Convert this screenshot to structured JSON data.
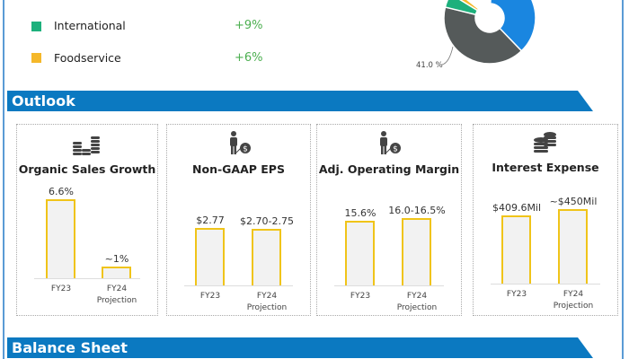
{
  "segments": {
    "items": [
      {
        "label": "International",
        "growth": "+9%",
        "color": "#1db07c"
      },
      {
        "label": "Foodservice",
        "growth": "+6%",
        "color": "#f5b82a"
      }
    ]
  },
  "pie": {
    "label": "41.0 %",
    "slices": [
      {
        "value": 37,
        "color": "#1a86e0"
      },
      {
        "value": 41.0,
        "color": "#555a5a"
      },
      {
        "value": 5,
        "color": "#1db07c"
      },
      {
        "value": 2,
        "color": "#f5b82a"
      }
    ]
  },
  "sections": {
    "outlook": "Outlook",
    "balance_sheet": "Balance Sheet"
  },
  "chart_data": [
    {
      "type": "bar",
      "title": "Organic Sales Growth",
      "icon": "coins-stack-icon",
      "categories": [
        "FY23",
        "FY24 Projection"
      ],
      "values": [
        6.6,
        1
      ],
      "labels": [
        "6.6%",
        "~1%"
      ]
    },
    {
      "type": "bar",
      "title": "Non-GAAP EPS",
      "icon": "person-dollar-icon",
      "categories": [
        "FY23",
        "FY24 Projection"
      ],
      "values": [
        2.77,
        2.725
      ],
      "labels": [
        "$2.77",
        "$2.70-2.75"
      ]
    },
    {
      "type": "bar",
      "title": "Adj. Operating Margin",
      "icon": "person-dollar-icon",
      "categories": [
        "FY23",
        "FY24 Projection"
      ],
      "values": [
        15.6,
        16.25
      ],
      "labels": [
        "15.6%",
        "16.0-16.5%"
      ]
    },
    {
      "type": "bar",
      "title": "Interest Expense",
      "icon": "database-coins-icon",
      "categories": [
        "FY23",
        "FY24 Projection"
      ],
      "values": [
        409.6,
        450
      ],
      "labels": [
        "$409.6Mil",
        "~$450Mil"
      ]
    }
  ],
  "xlabels": {
    "fy23": "FY23",
    "fy24": "FY24",
    "projection": "Projection"
  }
}
